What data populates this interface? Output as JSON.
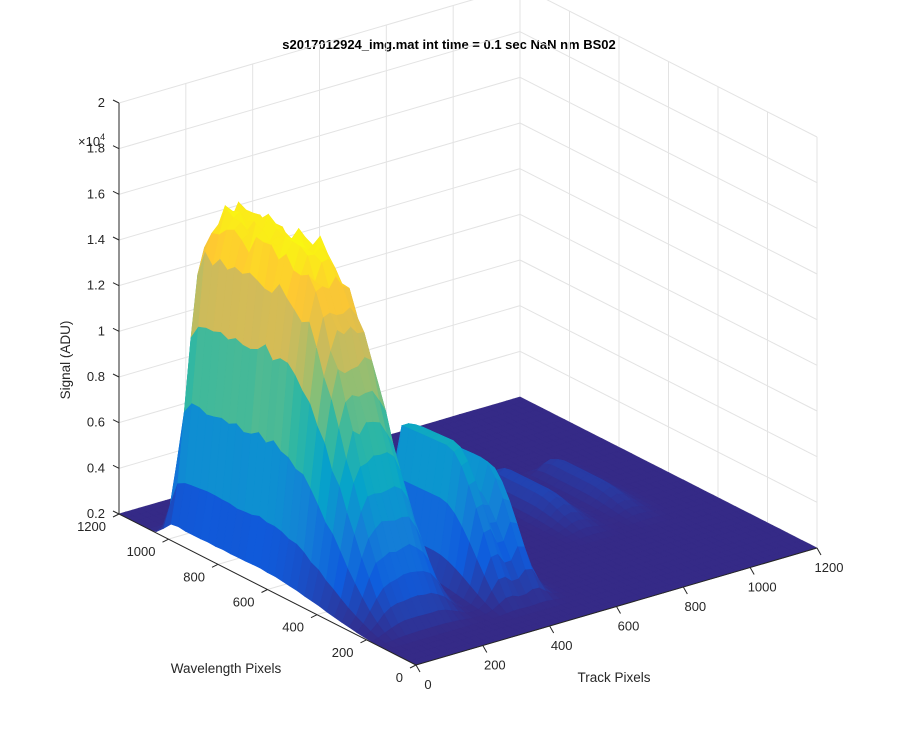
{
  "chart_data": {
    "type": "surface3d",
    "title": "s2017012924_img.mat int time = 0.1 sec  NaN nm BS02",
    "xlabel": "Track Pixels",
    "ylabel": "Wavelength Pixels",
    "zlabel": "Signal (ADU)",
    "z_exponent_label": "×10",
    "z_exponent_power": "4",
    "xlim": [
      0,
      1200
    ],
    "ylim": [
      0,
      1200
    ],
    "zlim": [
      0.2,
      2
    ],
    "x_ticks": [
      "0",
      "200",
      "400",
      "600",
      "800",
      "1000",
      "1200"
    ],
    "y_ticks": [
      "0",
      "200",
      "400",
      "600",
      "800",
      "1000",
      "1200"
    ],
    "z_ticks": [
      "0.2",
      "0.4",
      "0.6",
      "0.8",
      "1",
      "1.2",
      "1.4",
      "1.6",
      "1.8",
      "2"
    ],
    "z_unit_scale": 10000,
    "grid": true,
    "colormap": "parula",
    "colormap_colors": [
      "#352a87",
      "#0f5cdd",
      "#1481d6",
      "#06a4ca",
      "#2eb7a4",
      "#87bf77",
      "#d1bb59",
      "#fec832",
      "#f9fb0e"
    ],
    "peaks": [
      {
        "track_center": 150,
        "track_width": 120,
        "wavelength_start": 120,
        "wavelength_end": 1050,
        "max_signal": 1.62
      },
      {
        "track_center": 390,
        "track_width": 45,
        "wavelength_start": 100,
        "wavelength_end": 620,
        "max_signal": 0.82
      },
      {
        "track_center": 470,
        "track_width": 40,
        "wavelength_start": 100,
        "wavelength_end": 560,
        "max_signal": 0.72
      },
      {
        "track_center": 820,
        "track_width": 50,
        "wavelength_start": 350,
        "wavelength_end": 800,
        "max_signal": 0.3
      },
      {
        "track_center": 980,
        "track_width": 45,
        "wavelength_start": 350,
        "wavelength_end": 800,
        "max_signal": 0.27
      }
    ],
    "baseline_signal": 0.2
  }
}
